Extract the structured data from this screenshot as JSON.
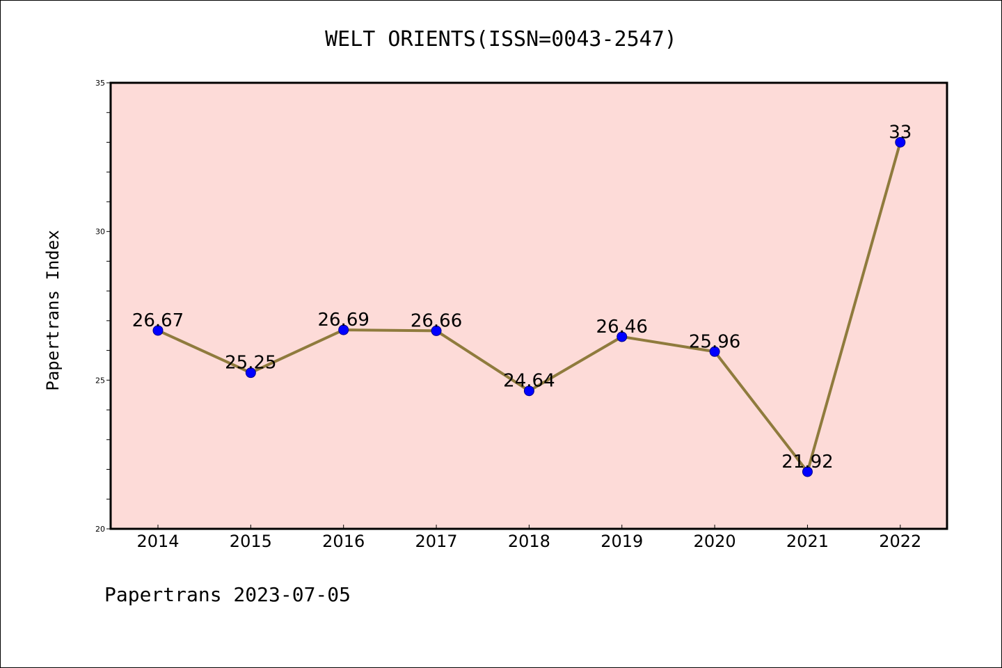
{
  "chart_data": {
    "type": "line",
    "title": "WELT ORIENTS(ISSN=0043-2547)",
    "xlabel": "",
    "ylabel": "Papertrans Index",
    "categories": [
      "2014",
      "2015",
      "2016",
      "2017",
      "2018",
      "2019",
      "2020",
      "2021",
      "2022"
    ],
    "series": [
      {
        "values": [
          26.67,
          25.25,
          26.69,
          26.66,
          24.64,
          26.46,
          25.96,
          21.92,
          33
        ],
        "data_labels": [
          "26.67",
          "25.25",
          "26.69",
          "26.66",
          "24.64",
          "26.46",
          "25.96",
          "21.92",
          "33"
        ]
      }
    ],
    "ylim": [
      20,
      35
    ],
    "y_ticks": [
      "20",
      "25",
      "30",
      "35"
    ],
    "y_minor_step": 1,
    "grid": false,
    "legend": "none",
    "colors": {
      "plot_background": "#fddbd8",
      "line": "#8f7b3d",
      "marker": "#0000ff",
      "marker_edge": "#00008b"
    }
  },
  "footer": {
    "text": "Papertrans 2023-07-05"
  }
}
